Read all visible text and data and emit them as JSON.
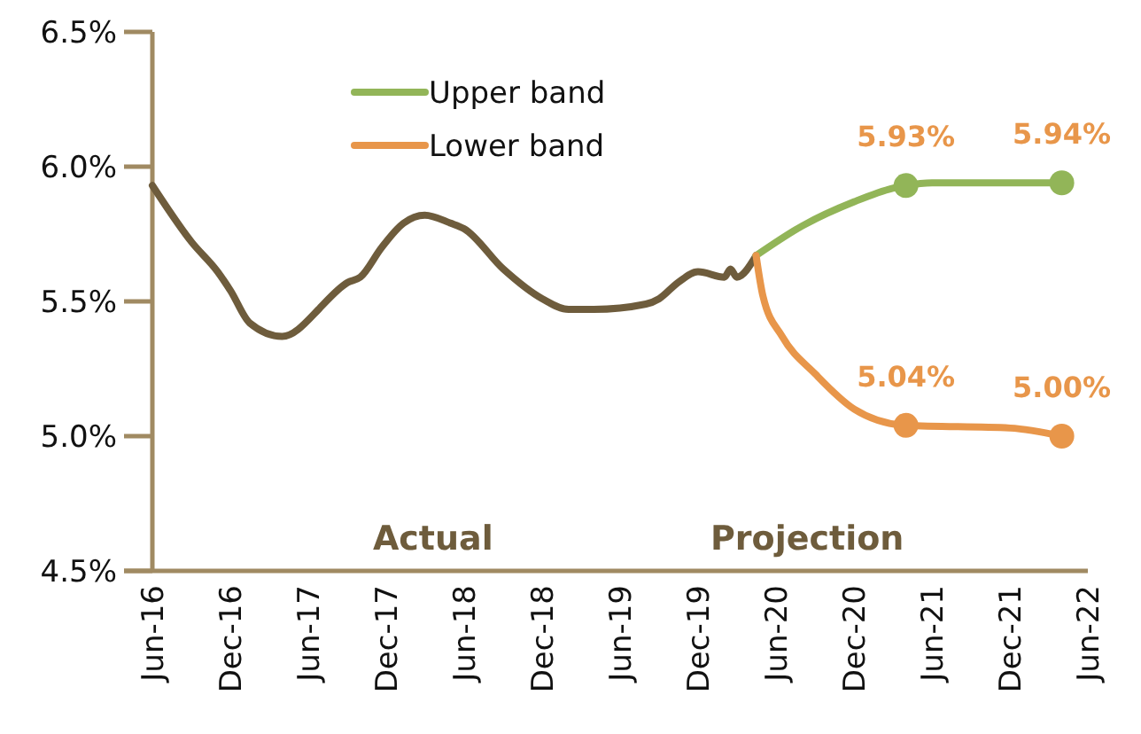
{
  "chart_data": {
    "type": "line",
    "xlim": [
      "2016-06",
      "2022-06"
    ],
    "xticks": [
      {
        "value": "2016-06",
        "label": "Jun-16"
      },
      {
        "value": "2016-12",
        "label": "Dec-16"
      },
      {
        "value": "2017-06",
        "label": "Jun-17"
      },
      {
        "value": "2017-12",
        "label": "Dec-17"
      },
      {
        "value": "2018-06",
        "label": "Jun-18"
      },
      {
        "value": "2018-12",
        "label": "Dec-18"
      },
      {
        "value": "2019-06",
        "label": "Jun-19"
      },
      {
        "value": "2019-12",
        "label": "Dec-19"
      },
      {
        "value": "2020-06",
        "label": "Jun-20"
      },
      {
        "value": "2020-12",
        "label": "Dec-20"
      },
      {
        "value": "2021-06",
        "label": "Jun-21"
      },
      {
        "value": "2021-12",
        "label": "Dec-21"
      },
      {
        "value": "2022-06",
        "label": "Jun-22"
      }
    ],
    "ylim": [
      4.5,
      6.5
    ],
    "yticks": [
      {
        "value": 4.5,
        "label": "4.5%"
      },
      {
        "value": 5.0,
        "label": "5.0%"
      },
      {
        "value": 5.5,
        "label": "5.5%"
      },
      {
        "value": 6.0,
        "label": "6.0%"
      },
      {
        "value": 6.5,
        "label": "6.5%"
      }
    ],
    "grid": false,
    "legend": "top",
    "series": [
      {
        "color": "#6e5c3c",
        "x": [
          "2016-06",
          "2016-09",
          "2016-11",
          "2016-12",
          "2017-01-15",
          "2017-04",
          "2017-06-25",
          "2017-07",
          "2017-09",
          "2017-10",
          "2017-11-20",
          "2018-01-10",
          "2018-03",
          "2018-05",
          "2018-06",
          "2018-09",
          "2018-12",
          "2019-02",
          "2019-04",
          "2019-08",
          "2019-09",
          "2019-10-15",
          "2019-12",
          "2020-02",
          "2020-02-15",
          "2020-03",
          "2020-04-15"
        ],
        "values": [
          5.93,
          5.72,
          5.61,
          5.54,
          5.42,
          5.37,
          5.47,
          5.48,
          5.57,
          5.59,
          5.7,
          5.79,
          5.82,
          5.79,
          5.77,
          5.62,
          5.51,
          5.47,
          5.47,
          5.49,
          5.51,
          5.57,
          5.61,
          5.59,
          5.62,
          5.59,
          5.67
        ]
      },
      {
        "name": "Upper band",
        "color": "#92b558",
        "x": [
          "2020-04-15",
          "2020-08",
          "2020-12",
          "2021-03",
          "2021-04",
          "2021-06",
          "2021-12",
          "2022-04"
        ],
        "values": [
          5.67,
          5.78,
          5.87,
          5.92,
          5.93,
          5.94,
          5.94,
          5.94
        ],
        "value_labels": [
          null,
          null,
          null,
          null,
          "5.93%",
          null,
          null,
          "5.94%"
        ]
      },
      {
        "name": "Lower band",
        "color": "#e8964a",
        "x": [
          "2020-04-15",
          "2020-05",
          "2020-06-15",
          "2020-09",
          "2020-12",
          "2021-04",
          "2021-12",
          "2022-04"
        ],
        "values": [
          5.67,
          5.52,
          5.37,
          5.23,
          5.1,
          5.04,
          5.03,
          5.0
        ],
        "value_labels": [
          null,
          null,
          null,
          null,
          null,
          "5.04%",
          null,
          "5.00%"
        ]
      }
    ],
    "annotations": [
      "Actual",
      "Projection"
    ]
  }
}
